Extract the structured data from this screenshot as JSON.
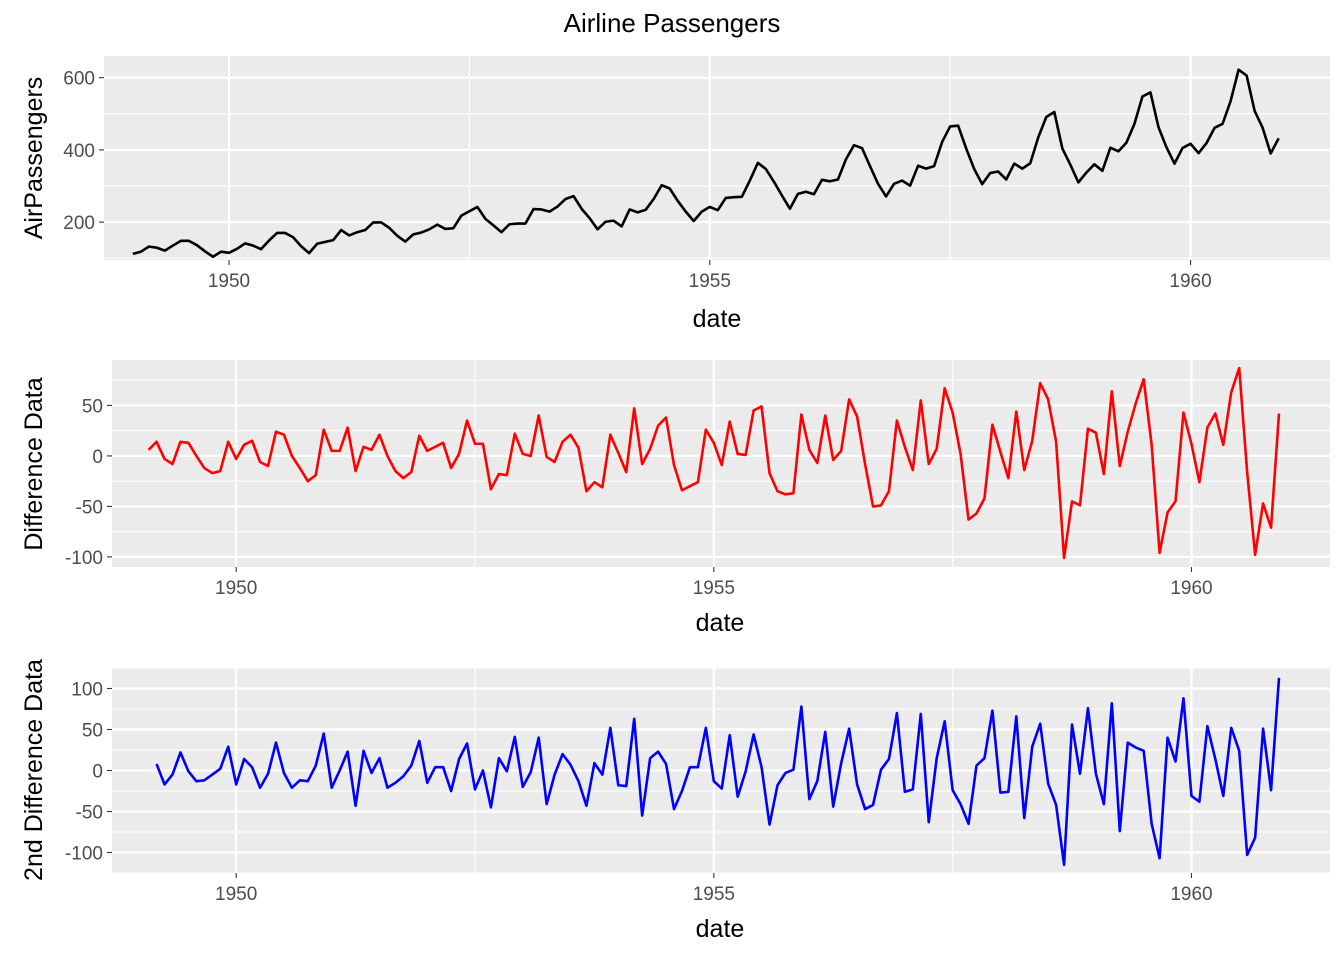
{
  "figure": {
    "title": "Airline Passengers",
    "panel_background": "#ebebeb",
    "grid_color": "#ffffff"
  },
  "chart_data": [
    {
      "type": "line",
      "x_label": "date",
      "y_label": "AirPassengers",
      "xlim": [
        1948.7,
        1961.45
      ],
      "ylim": [
        95,
        660
      ],
      "x_ticks": [
        1950,
        1955,
        1960
      ],
      "x_tick_labels": [
        "1950",
        "1955",
        "1960"
      ],
      "y_ticks": [
        200,
        400,
        600
      ],
      "y_tick_labels": [
        "200",
        "400",
        "600"
      ],
      "grid": true,
      "series": [
        {
          "color": "#000000",
          "x_start": 1949.0,
          "x_step": 0.08333,
          "values": [
            112,
            118,
            132,
            129,
            121,
            135,
            148,
            148,
            136,
            119,
            104,
            118,
            115,
            126,
            141,
            135,
            125,
            149,
            170,
            170,
            158,
            133,
            114,
            140,
            145,
            150,
            178,
            163,
            172,
            178,
            199,
            199,
            184,
            162,
            146,
            166,
            171,
            180,
            193,
            181,
            183,
            218,
            230,
            242,
            209,
            191,
            172,
            194,
            196,
            196,
            236,
            235,
            229,
            243,
            264,
            272,
            237,
            211,
            180,
            201,
            204,
            188,
            235,
            227,
            234,
            264,
            302,
            293,
            259,
            229,
            203,
            229,
            242,
            233,
            267,
            269,
            270,
            315,
            364,
            347,
            312,
            274,
            237,
            278,
            284,
            277,
            317,
            313,
            318,
            374,
            413,
            405,
            355,
            306,
            271,
            306,
            315,
            301,
            356,
            348,
            355,
            422,
            465,
            467,
            404,
            347,
            305,
            336,
            340,
            318,
            362,
            348,
            363,
            435,
            491,
            505,
            404,
            359,
            310,
            337,
            360,
            342,
            406,
            396,
            420,
            472,
            548,
            559,
            463,
            407,
            362,
            405,
            417,
            391,
            419,
            461,
            472,
            535,
            622,
            606,
            508,
            461,
            390,
            432
          ]
        }
      ]
    },
    {
      "type": "line",
      "x_label": "date",
      "y_label": "Difference Data",
      "xlim": [
        1948.7,
        1961.45
      ],
      "ylim": [
        -110,
        95
      ],
      "x_ticks": [
        1950,
        1955,
        1960
      ],
      "x_tick_labels": [
        "1950",
        "1955",
        "1960"
      ],
      "y_ticks": [
        -100,
        -50,
        0,
        50
      ],
      "y_tick_labels": [
        "-100",
        "-50",
        "0",
        "50"
      ],
      "grid": true,
      "series": [
        {
          "color": "#ff0000",
          "x_start": 1949.0833,
          "x_step": 0.08333,
          "values": [
            6,
            14,
            -3,
            -8,
            14,
            13,
            0,
            -12,
            -17,
            -15,
            14,
            -3,
            11,
            15,
            -6,
            -10,
            24,
            21,
            0,
            -12,
            -25,
            -19,
            26,
            5,
            5,
            28,
            -15,
            9,
            6,
            21,
            0,
            -15,
            -22,
            -16,
            20,
            5,
            9,
            13,
            -12,
            2,
            35,
            12,
            12,
            -33,
            -18,
            -19,
            22,
            2,
            0,
            40,
            -1,
            -6,
            14,
            21,
            8,
            -35,
            -26,
            -31,
            21,
            3,
            -16,
            47,
            -8,
            7,
            30,
            38,
            -9,
            -34,
            -30,
            -26,
            26,
            13,
            -9,
            34,
            2,
            1,
            45,
            49,
            -17,
            -35,
            -38,
            -37,
            41,
            6,
            -7,
            40,
            -4,
            5,
            56,
            39,
            -8,
            -50,
            -49,
            -35,
            35,
            9,
            -14,
            55,
            -8,
            7,
            67,
            43,
            2,
            -63,
            -57,
            -42,
            31,
            4,
            -22,
            44,
            -14,
            15,
            72,
            56,
            14,
            -101,
            -45,
            -49,
            27,
            23,
            -18,
            64,
            -10,
            24,
            52,
            76,
            11,
            -96,
            -56,
            -45,
            43,
            12,
            -26,
            28,
            42,
            11,
            63,
            87,
            -16,
            -98,
            -47,
            -71,
            42
          ]
        }
      ]
    },
    {
      "type": "line",
      "x_label": "date",
      "y_label": "2nd Difference Data",
      "xlim": [
        1948.7,
        1961.45
      ],
      "ylim": [
        -125,
        125
      ],
      "x_ticks": [
        1950,
        1955,
        1960
      ],
      "x_tick_labels": [
        "1950",
        "1955",
        "1960"
      ],
      "y_ticks": [
        -100,
        -50,
        0,
        50,
        100
      ],
      "y_tick_labels": [
        "-100",
        "-50",
        "0",
        "50",
        "100"
      ],
      "grid": true,
      "series": [
        {
          "color": "#0000ff",
          "x_start": 1949.1667,
          "x_step": 0.08333,
          "values": [
            8,
            -17,
            -5,
            22,
            -1,
            -13,
            -12,
            -5,
            2,
            29,
            -17,
            14,
            4,
            -21,
            -4,
            34,
            -3,
            -21,
            -12,
            -13,
            6,
            45,
            -21,
            0,
            23,
            -43,
            24,
            -3,
            15,
            -21,
            -15,
            -7,
            6,
            36,
            -15,
            4,
            4,
            -25,
            14,
            33,
            -23,
            0,
            -45,
            15,
            -1,
            41,
            -20,
            -2,
            40,
            -41,
            -5,
            20,
            7,
            -13,
            -43,
            9,
            -5,
            52,
            -18,
            -19,
            63,
            -55,
            15,
            23,
            8,
            -47,
            -25,
            4,
            4,
            52,
            -13,
            -22,
            43,
            -32,
            -1,
            44,
            4,
            -66,
            -18,
            -3,
            1,
            78,
            -35,
            -13,
            47,
            -44,
            9,
            51,
            -17,
            -47,
            -42,
            1,
            14,
            70,
            -26,
            -23,
            69,
            -63,
            15,
            60,
            -24,
            -41,
            -65,
            6,
            15,
            73,
            -27,
            -26,
            66,
            -58,
            29,
            57,
            -16,
            -42,
            -115,
            56,
            -4,
            76,
            -4,
            -41,
            82,
            -74,
            34,
            28,
            24,
            -65,
            -107,
            40,
            11,
            88,
            -31,
            -38,
            54,
            14,
            -31,
            52,
            24,
            -103,
            -82,
            51,
            -24,
            113
          ]
        }
      ]
    }
  ]
}
